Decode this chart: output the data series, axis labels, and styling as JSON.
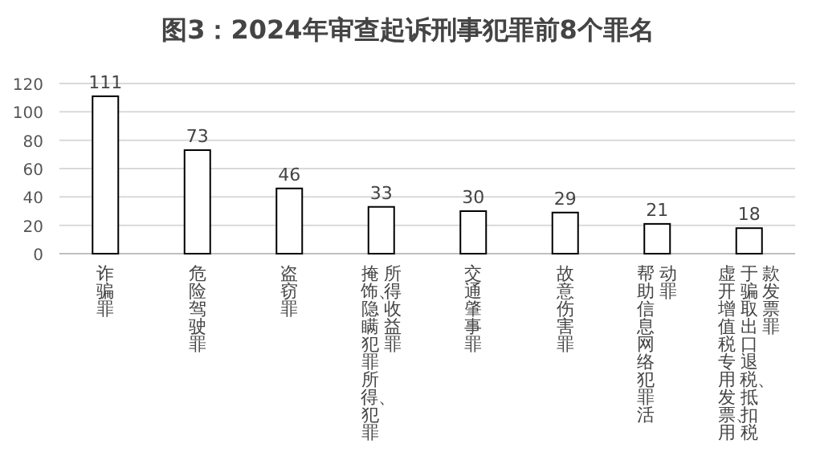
{
  "chart_data": {
    "type": "bar",
    "title": "图3：2024年审查起诉刑事犯罪前8个罪名",
    "categories": [
      "诈骗罪",
      "危险驾驶罪",
      "盗窃罪",
      "掩饰、隐瞒犯罪所得、犯罪所得收益罪",
      "交通肇事罪",
      "故意伤害罪",
      "帮助信息网络犯罪活动罪",
      "虚开增值税专用发票、用于骗取出口退税、抵扣税款发票罪"
    ],
    "values": [
      111,
      73,
      46,
      33,
      30,
      29,
      21,
      18
    ],
    "color": "#ffffff",
    "ylim": [
      0,
      120
    ],
    "yticks": [
      0,
      20,
      40,
      60,
      80,
      100,
      120
    ],
    "grid": "y",
    "data_labels": true
  }
}
